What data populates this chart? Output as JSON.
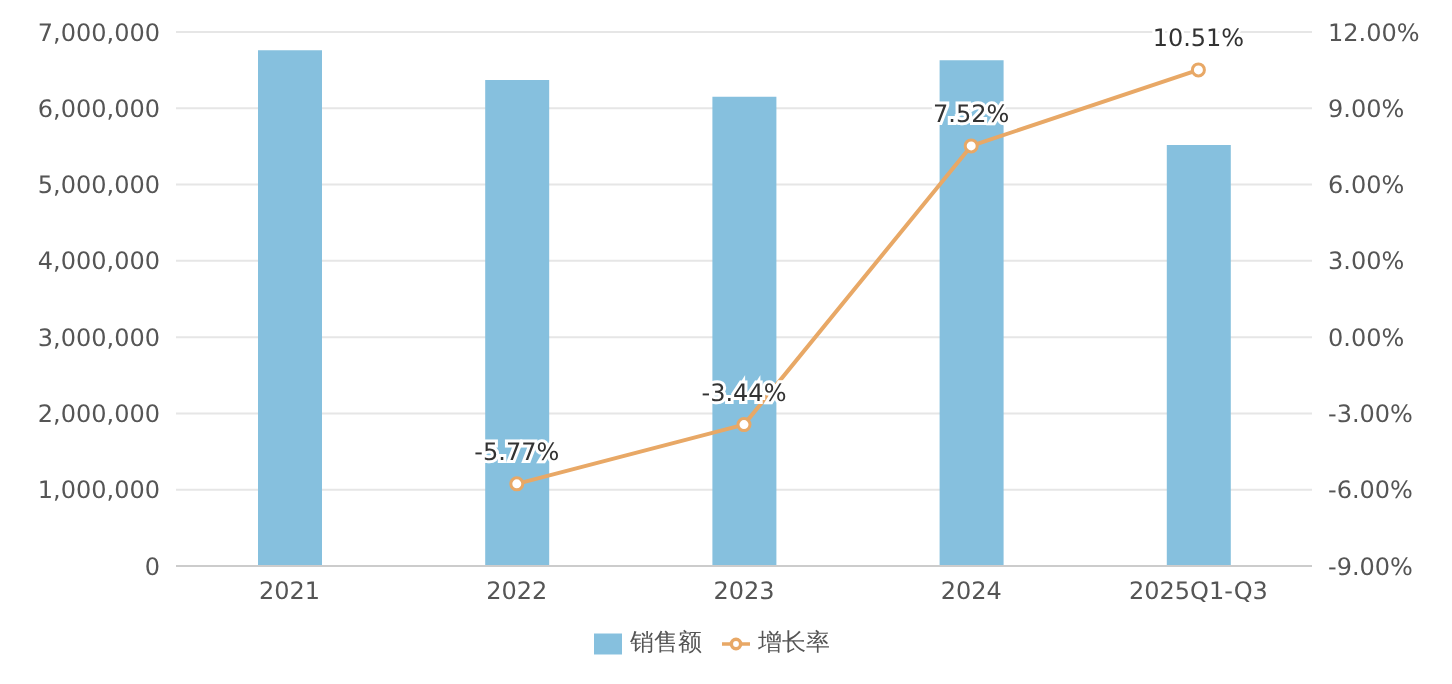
{
  "chart_data": {
    "type": "bar",
    "categories": [
      "2021",
      "2022",
      "2023",
      "2024",
      "2025Q1-Q3"
    ],
    "series": [
      {
        "name": "销售额",
        "color": "#86c0de",
        "values": [
          6760000,
          6370000,
          6150000,
          6630000,
          5520000
        ]
      },
      {
        "name": "增长率",
        "type": "line",
        "axis": "y2",
        "color": "#e8a866",
        "values": [
          null,
          -5.77,
          -3.44,
          7.52,
          10.51
        ],
        "value_labels": [
          null,
          "-5.77%",
          "-3.44%",
          "7.52%",
          "10.51%"
        ]
      }
    ],
    "ylim": [
      0,
      7000000
    ],
    "yticks": [
      0,
      {
        "value": 1000000,
        "label": "1,000,000"
      },
      {
        "value": 2000000,
        "label": "2,000,000"
      },
      {
        "value": 3000000,
        "label": "3,000,000"
      },
      {
        "value": 4000000,
        "label": "4,000,000"
      },
      {
        "value": 5000000,
        "label": "5,000,000"
      },
      {
        "value": 6000000,
        "label": "6,000,000"
      },
      {
        "value": 7000000,
        "label": "7,000,000"
      }
    ],
    "y2lim": [
      -9,
      12
    ],
    "y2ticks": [
      {
        "value": -9,
        "label": "-9.00%"
      },
      {
        "value": -6,
        "label": "-6.00%"
      },
      {
        "value": -3,
        "label": "-3.00%"
      },
      {
        "value": 0,
        "label": "0.00%"
      },
      {
        "value": 3,
        "label": "3.00%"
      },
      {
        "value": 6,
        "label": "6.00%"
      },
      {
        "value": 9,
        "label": "9.00%"
      },
      {
        "value": 12,
        "label": "12.00%"
      }
    ],
    "grid": "y",
    "legend": "bottom",
    "marker": "circle",
    "line_style": "solid"
  }
}
